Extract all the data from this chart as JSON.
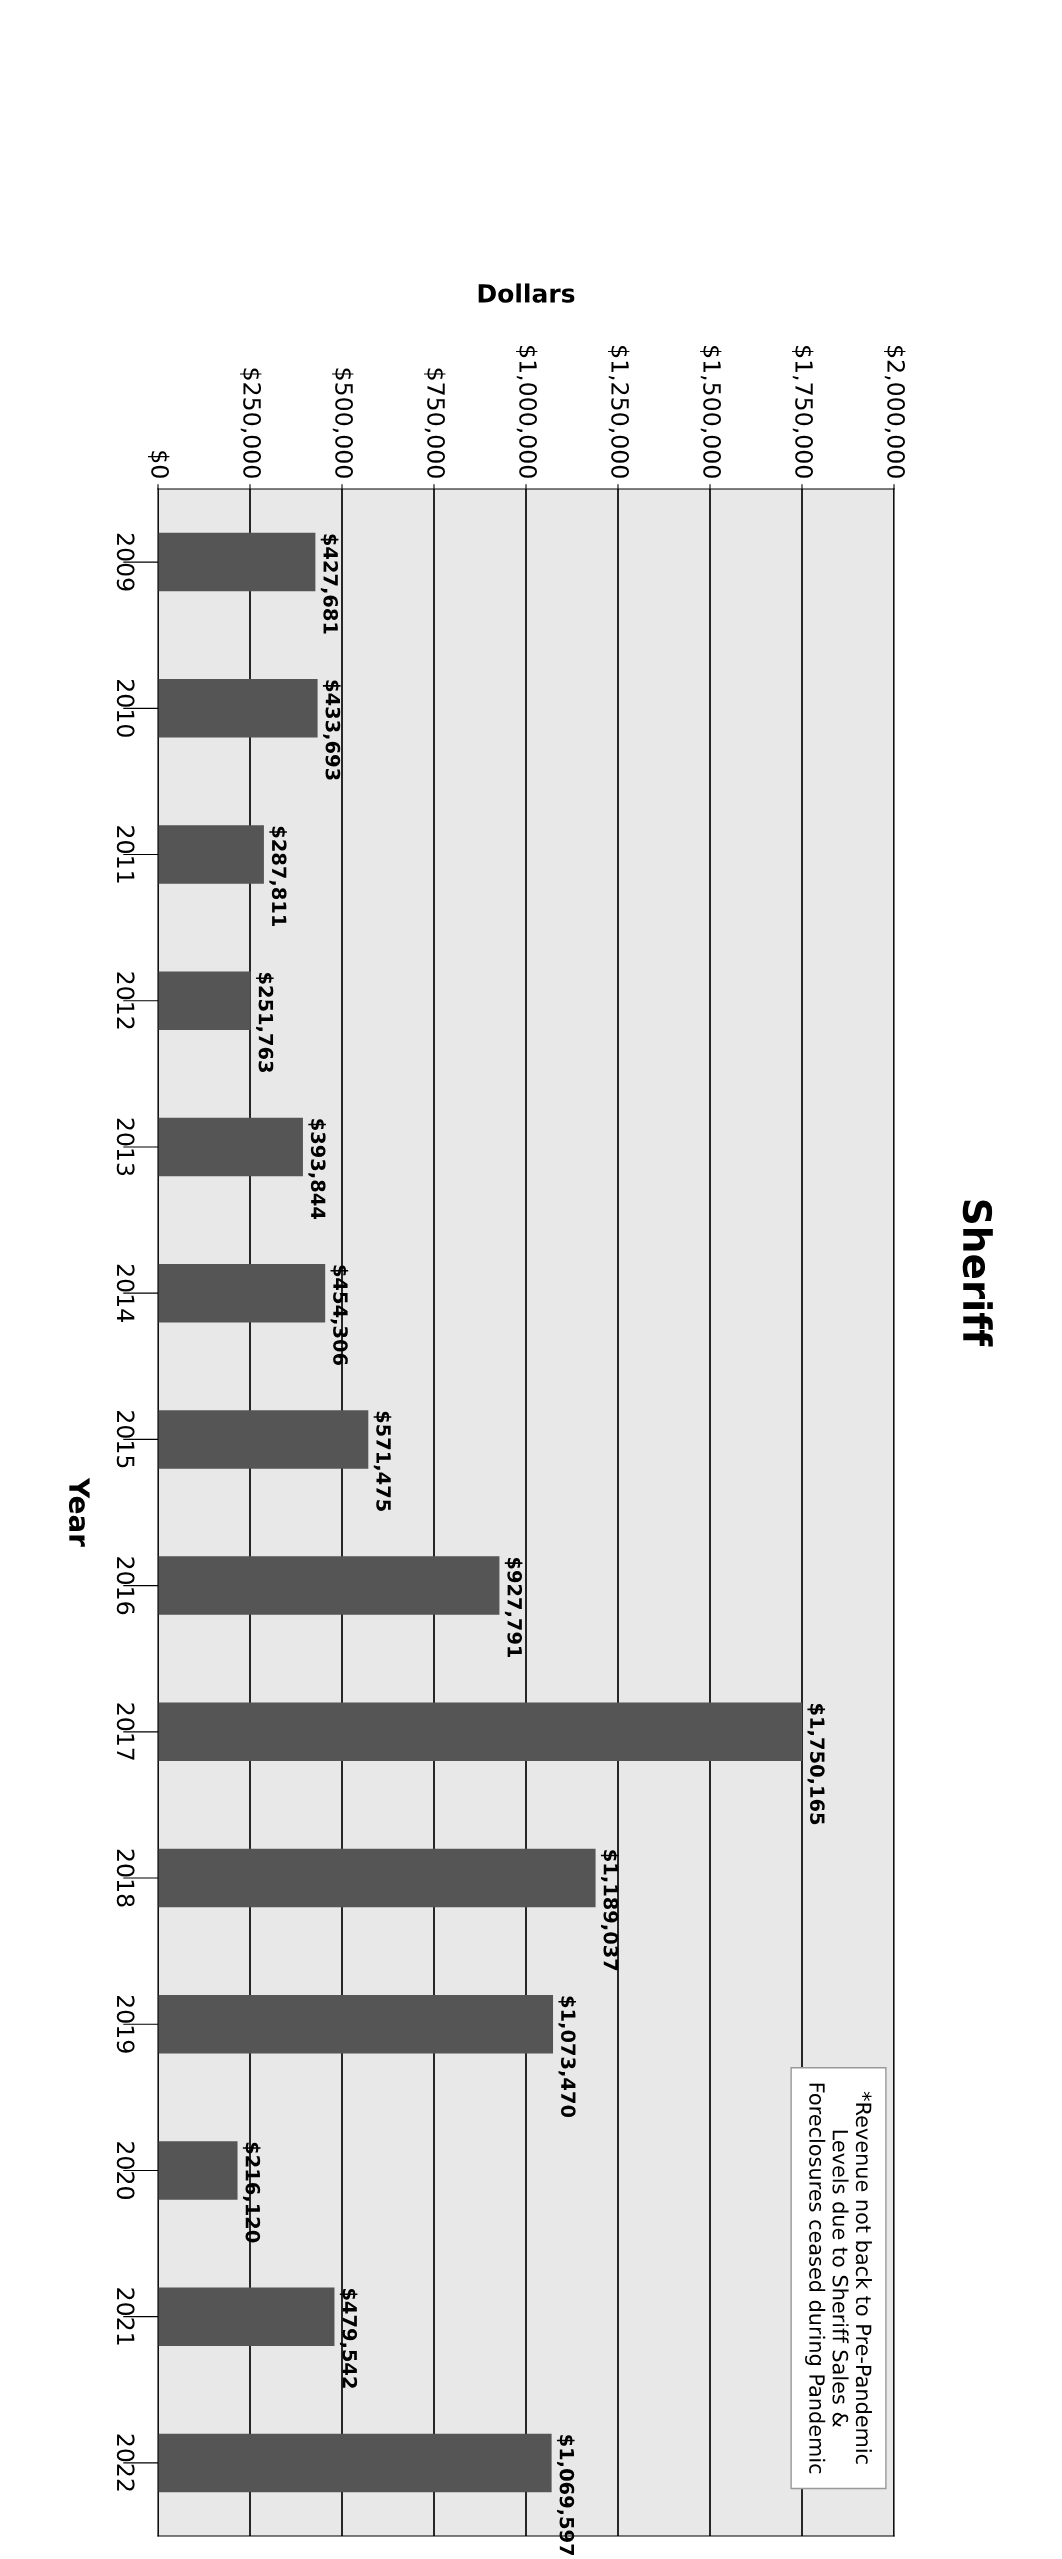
{
  "chart_data": {
    "type": "bar",
    "orientation": "horizontal",
    "title": "Sheriff",
    "xlabel": "Dollars",
    "ylabel": "Year",
    "categories": [
      "2009",
      "2010",
      "2011",
      "2012",
      "2013",
      "2014",
      "2015",
      "2016",
      "2017",
      "2018",
      "2019",
      "2020",
      "2021",
      "2022"
    ],
    "values": [
      427681,
      433693,
      287811,
      251763,
      393844,
      454306,
      571475,
      927791,
      1750165,
      1189037,
      1073470,
      216120,
      479542,
      1069597
    ],
    "value_labels": [
      "$427,681",
      "$433,693",
      "$287,811",
      "$251,763",
      "$393,844",
      "$454,306",
      "$571,475",
      "$927,791",
      "$1,750,165",
      "$1,189,037",
      "$1,073,470",
      "$216,120",
      "$479,542",
      "$1,069,597"
    ],
    "color": "#555555",
    "xlim": [
      0,
      2000000
    ],
    "xticks": [
      {
        "value": 0,
        "label": "$0"
      },
      {
        "value": 250000,
        "label": "$250,000"
      },
      {
        "value": 500000,
        "label": "$500,000"
      },
      {
        "value": 750000,
        "label": "$750,000"
      },
      {
        "value": 1000000,
        "label": "$1,000,000"
      },
      {
        "value": 1250000,
        "label": "$1,250,000"
      },
      {
        "value": 1500000,
        "label": "$1,500,000"
      },
      {
        "value": 1750000,
        "label": "$1,750,000"
      },
      {
        "value": 2000000,
        "label": "$2,000,000"
      }
    ],
    "grid": "x",
    "annotations": [
      "*Revenue not back to Pre-Pandemic\nLevels due to Sheriff Sales &\nForeclosures ceased during Pandemic"
    ]
  }
}
